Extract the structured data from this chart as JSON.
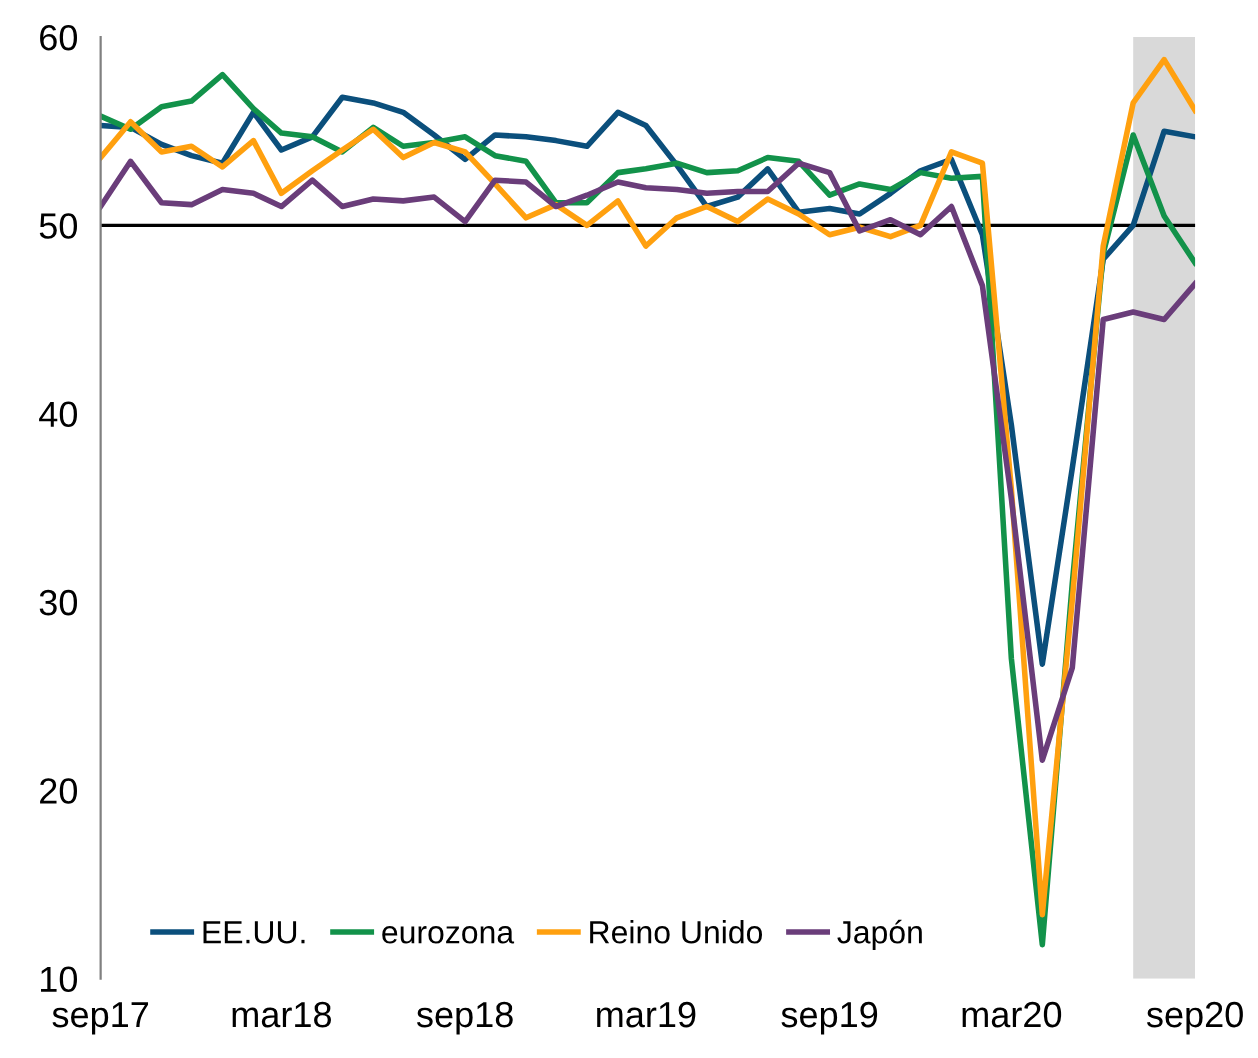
{
  "chart_data": {
    "type": "line",
    "x": [
      "2017-09",
      "2017-10",
      "2017-11",
      "2017-12",
      "2018-01",
      "2018-02",
      "2018-03",
      "2018-04",
      "2018-05",
      "2018-06",
      "2018-07",
      "2018-08",
      "2018-09",
      "2018-10",
      "2018-11",
      "2018-12",
      "2019-01",
      "2019-02",
      "2019-03",
      "2019-04",
      "2019-05",
      "2019-06",
      "2019-07",
      "2019-08",
      "2019-09",
      "2019-10",
      "2019-11",
      "2019-12",
      "2020-01",
      "2020-02",
      "2020-03",
      "2020-04",
      "2020-05",
      "2020-06",
      "2020-07",
      "2020-08",
      "2020-09"
    ],
    "series": [
      {
        "name": "EE.UU.",
        "color": "#0b4f7c",
        "values": [
          55.3,
          55.2,
          54.3,
          53.7,
          53.3,
          56.0,
          54.0,
          54.7,
          56.8,
          56.5,
          56.0,
          54.8,
          53.5,
          54.8,
          54.7,
          54.5,
          54.2,
          56.0,
          55.3,
          53.2,
          51.0,
          51.5,
          53.0,
          50.7,
          50.9,
          50.6,
          51.7,
          52.9,
          53.5,
          49.5,
          39.4,
          26.7,
          37.1,
          48.2,
          50.0,
          55.0,
          54.7
        ]
      },
      {
        "name": "eurozona",
        "color": "#12924a",
        "values": [
          55.8,
          55.1,
          56.3,
          56.6,
          58.0,
          56.2,
          54.9,
          54.7,
          53.9,
          55.2,
          54.2,
          54.4,
          54.7,
          53.7,
          53.4,
          51.2,
          51.2,
          52.8,
          53.0,
          53.3,
          52.8,
          52.9,
          53.6,
          53.4,
          51.6,
          52.2,
          51.9,
          52.8,
          52.5,
          52.6,
          27.0,
          11.8,
          31.0,
          48.5,
          54.8,
          50.5,
          48.0
        ]
      },
      {
        "name": "Reino Unido",
        "color": "#ffa00f",
        "values": [
          53.6,
          55.5,
          53.9,
          54.2,
          53.1,
          54.5,
          51.7,
          52.9,
          54.0,
          55.1,
          53.6,
          54.4,
          53.9,
          52.2,
          50.4,
          51.1,
          50.0,
          51.3,
          48.9,
          50.4,
          51.0,
          50.2,
          51.4,
          50.6,
          49.5,
          49.9,
          49.4,
          50.0,
          53.9,
          53.3,
          36.0,
          13.4,
          30.1,
          48.9,
          56.5,
          58.8,
          56.1
        ]
      },
      {
        "name": "Japón",
        "color": "#6a3d7a",
        "values": [
          51.0,
          53.4,
          51.2,
          51.1,
          51.9,
          51.7,
          51.0,
          52.4,
          51.0,
          51.4,
          51.3,
          51.5,
          50.2,
          52.4,
          52.3,
          51.0,
          51.6,
          52.3,
          52.0,
          51.9,
          51.7,
          51.8,
          51.8,
          53.3,
          52.8,
          49.7,
          50.3,
          49.5,
          51.0,
          46.8,
          35.5,
          21.6,
          26.5,
          45.0,
          45.4,
          45.0,
          46.9
        ]
      }
    ],
    "xlim": [
      "2017-09",
      "2020-09"
    ],
    "xticks": [
      {
        "value": "2017-09",
        "label": "sep17"
      },
      {
        "value": "2018-03",
        "label": "mar18"
      },
      {
        "value": "2018-09",
        "label": "sep18"
      },
      {
        "value": "2019-03",
        "label": "mar19"
      },
      {
        "value": "2019-09",
        "label": "sep19"
      },
      {
        "value": "2020-03",
        "label": "mar20"
      },
      {
        "value": "2020-09",
        "label": "sep20"
      }
    ],
    "ylim": [
      10,
      60
    ],
    "yticks": [
      10,
      20,
      30,
      40,
      50,
      60
    ],
    "ref_lines": [
      {
        "axis": "y",
        "value": 50,
        "color": "#000000"
      }
    ],
    "bands": [
      {
        "axis": "x",
        "from": "2020-07",
        "to": "2020-09",
        "color": "#d9d9d9"
      }
    ],
    "legend": "bottom",
    "line_style": "solid"
  }
}
